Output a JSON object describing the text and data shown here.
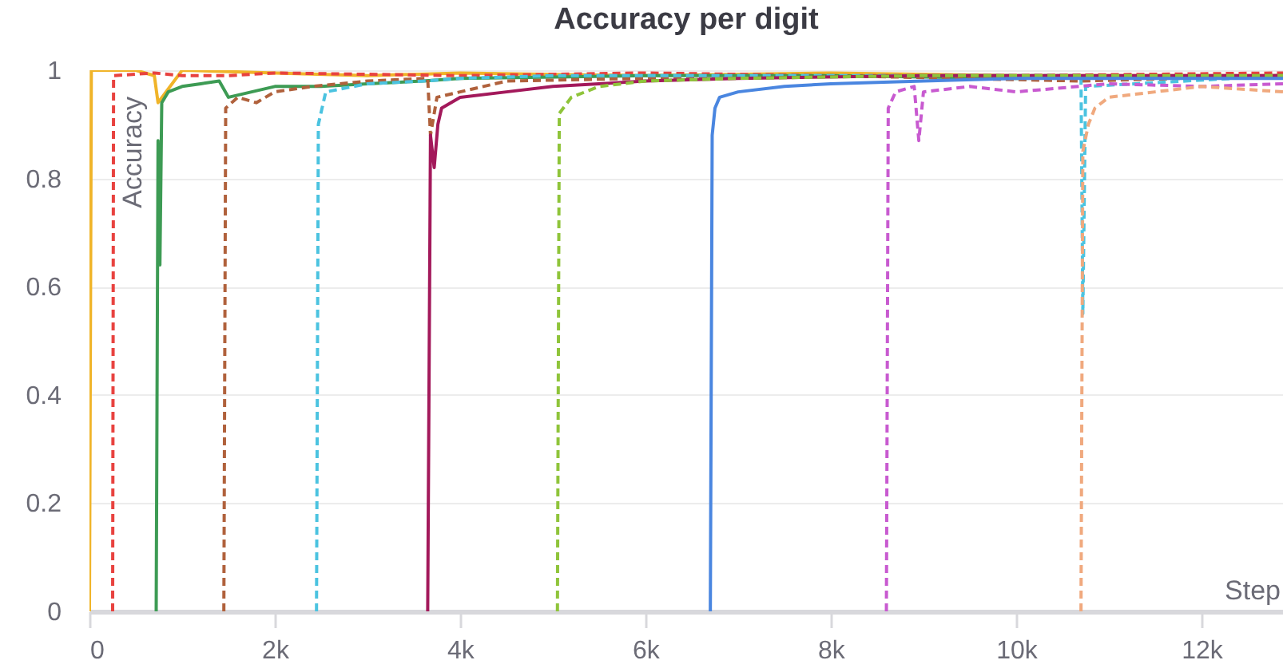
{
  "chart_data": {
    "type": "line",
    "title": "Accuracy per digit",
    "xlabel": "Step",
    "ylabel": "Accuracy",
    "xlim": [
      0,
      12880
    ],
    "xticks": [
      0,
      {
        "value": 2000,
        "label": "2k"
      },
      {
        "value": 4000,
        "label": "4k"
      },
      {
        "value": 6000,
        "label": "6k"
      },
      {
        "value": 8000,
        "label": "8k"
      },
      {
        "value": 10000,
        "label": "10k"
      },
      {
        "value": 12000,
        "label": "12k"
      }
    ],
    "ylim": [
      0,
      1
    ],
    "yticks": [
      0,
      0.2,
      0.4,
      0.6,
      0.8,
      1
    ],
    "grid": "y",
    "legend": false,
    "series": [
      {
        "color": "#f0b429",
        "line_style": "solid",
        "x": [
          0,
          20,
          500,
          700,
          740,
          1000,
          2000,
          3000,
          4000,
          6000,
          8000,
          10000,
          12880
        ],
        "values": [
          0,
          1,
          1,
          0.99,
          0.94,
          1,
          0.995,
          0.99,
          0.995,
          0.99,
          0.995,
          0.99,
          0.99
        ]
      },
      {
        "color": "#e8423f",
        "line_style": "dashed",
        "x": [
          250,
          260,
          700,
          1000,
          1500,
          2000,
          4000,
          6000,
          8000,
          10000,
          12880
        ],
        "values": [
          0,
          0.99,
          0.995,
          0.99,
          0.99,
          0.995,
          0.99,
          0.995,
          0.99,
          0.99,
          0.995
        ]
      },
      {
        "color": "#3d9b54",
        "line_style": "solid",
        "x": [
          720,
          740,
          760,
          780,
          850,
          1000,
          1200,
          1400,
          1500,
          2000,
          2500,
          3000,
          3600,
          4000,
          6000,
          8000,
          10000,
          12880
        ],
        "values": [
          0,
          0.87,
          0.64,
          0.94,
          0.96,
          0.97,
          0.975,
          0.98,
          0.95,
          0.97,
          0.97,
          0.975,
          0.98,
          0.985,
          0.99,
          0.99,
          0.985,
          0.99
        ]
      },
      {
        "color": "#b0613c",
        "line_style": "dashed",
        "x": [
          1450,
          1470,
          1600,
          1800,
          2000,
          2400,
          3000,
          3650,
          3680,
          3750,
          4500,
          6000,
          8000,
          10700,
          12880
        ],
        "values": [
          0,
          0.93,
          0.95,
          0.94,
          0.96,
          0.97,
          0.98,
          0.985,
          0.88,
          0.95,
          0.98,
          0.985,
          0.99,
          0.98,
          0.99
        ]
      },
      {
        "color": "#4bc3e0",
        "line_style": "dashed",
        "x": [
          2450,
          2470,
          2550,
          3000,
          3600,
          4000,
          5000,
          7000,
          10700,
          10720,
          10750,
          12880
        ],
        "values": [
          0,
          0.9,
          0.96,
          0.975,
          0.98,
          0.985,
          0.99,
          0.99,
          0.99,
          0.55,
          0.97,
          0.99
        ]
      },
      {
        "color": "#a3195b",
        "line_style": "solid",
        "x": [
          3650,
          3680,
          3720,
          3760,
          3800,
          4000,
          4500,
          5000,
          5500,
          6000,
          7000,
          9000,
          12880
        ],
        "values": [
          0,
          0.88,
          0.82,
          0.9,
          0.93,
          0.95,
          0.96,
          0.97,
          0.975,
          0.98,
          0.985,
          0.99,
          0.99
        ]
      },
      {
        "color": "#8fc43a",
        "line_style": "dashed",
        "x": [
          5050,
          5070,
          5200,
          5500,
          6000,
          7000,
          9000,
          12880
        ],
        "values": [
          0,
          0.92,
          0.95,
          0.97,
          0.98,
          0.985,
          0.99,
          0.99
        ]
      },
      {
        "color": "#4a86e0",
        "line_style": "solid",
        "x": [
          6700,
          6720,
          6750,
          6800,
          7000,
          7500,
          8000,
          9000,
          10000,
          12880
        ],
        "values": [
          0,
          0.88,
          0.93,
          0.95,
          0.96,
          0.97,
          0.975,
          0.98,
          0.985,
          0.985
        ]
      },
      {
        "color": "#c85ad0",
        "line_style": "dashed",
        "x": [
          8600,
          8620,
          8700,
          8900,
          8950,
          9000,
          9500,
          10000,
          11000,
          12000,
          12880
        ],
        "values": [
          0,
          0.93,
          0.96,
          0.97,
          0.87,
          0.96,
          0.97,
          0.96,
          0.975,
          0.97,
          0.975
        ]
      },
      {
        "color": "#f0a97e",
        "line_style": "dashed",
        "x": [
          10700,
          10720,
          10780,
          10850,
          11000,
          11500,
          12000,
          12880
        ],
        "values": [
          0,
          0.85,
          0.9,
          0.93,
          0.95,
          0.96,
          0.97,
          0.96
        ]
      }
    ]
  }
}
